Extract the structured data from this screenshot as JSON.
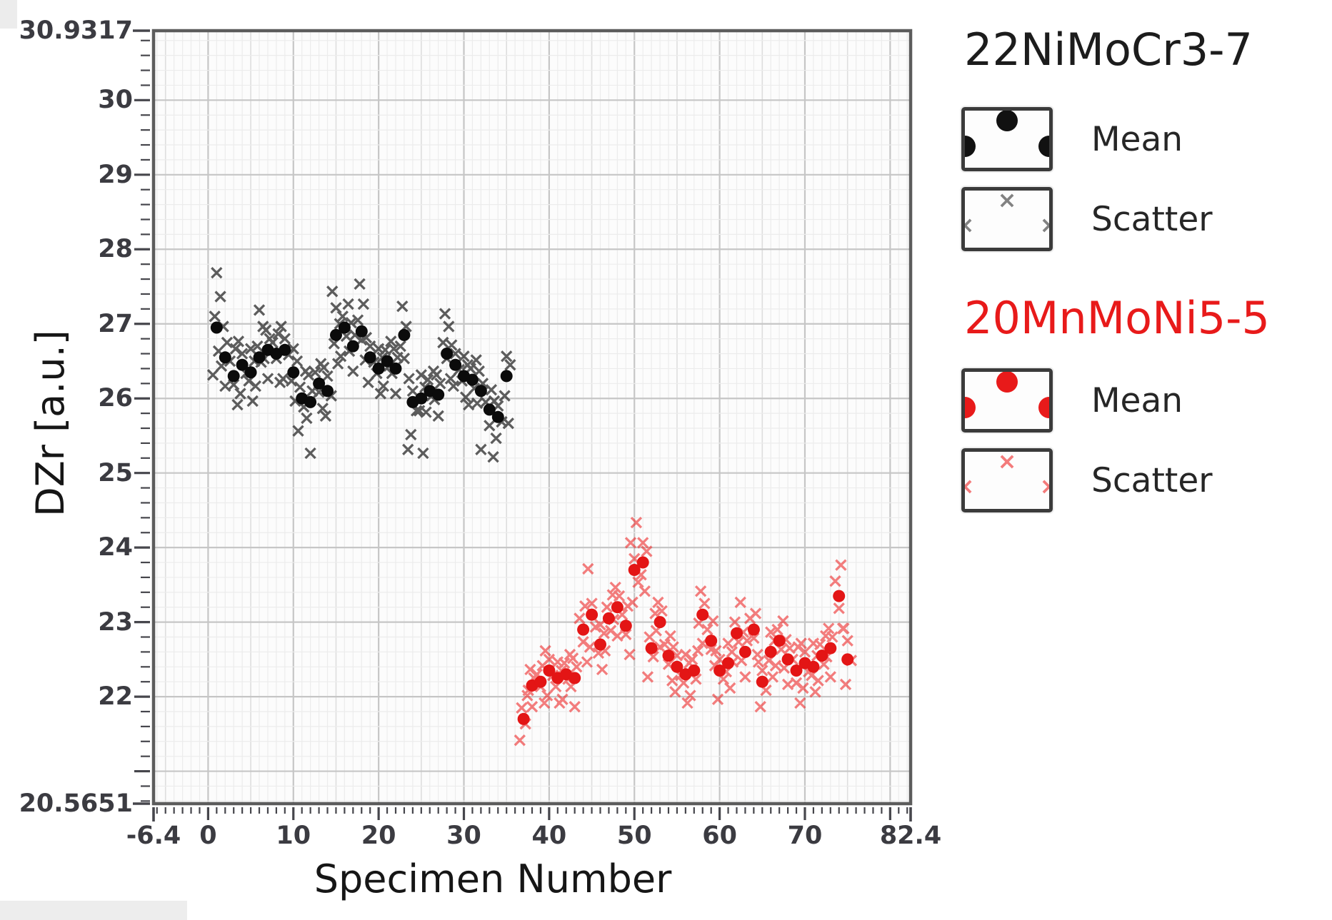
{
  "chart_data": {
    "type": "scatter",
    "title": "",
    "xlabel": "Specimen Number",
    "ylabel": "DZr [a.u.]",
    "xlim": [
      -6.4,
      82.4
    ],
    "ylim": [
      20.5651,
      30.9317
    ],
    "grid": true,
    "x_minor_step": 1,
    "y_minor_step": 0.2,
    "x_ticks": [
      {
        "v": -6.4,
        "label": "-6.4"
      },
      {
        "v": 0,
        "label": "0"
      },
      {
        "v": 10,
        "label": "10"
      },
      {
        "v": 20,
        "label": "20"
      },
      {
        "v": 30,
        "label": "30"
      },
      {
        "v": 40,
        "label": "40"
      },
      {
        "v": 50,
        "label": "50"
      },
      {
        "v": 60,
        "label": "60"
      },
      {
        "v": 70,
        "label": "70"
      },
      {
        "v": 82.4,
        "label": "82.4"
      }
    ],
    "y_ticks": [
      {
        "v": 30.9317,
        "label": "30.9317"
      },
      {
        "v": 30,
        "label": "30"
      },
      {
        "v": 29,
        "label": "29"
      },
      {
        "v": 28,
        "label": "28"
      },
      {
        "v": 27,
        "label": "27"
      },
      {
        "v": 26,
        "label": "26"
      },
      {
        "v": 25,
        "label": "25"
      },
      {
        "v": 24,
        "label": "24"
      },
      {
        "v": 23,
        "label": "23"
      },
      {
        "v": 22,
        "label": "22"
      },
      {
        "v": 20.5651,
        "label": "20.5651"
      }
    ],
    "series": [
      {
        "name": "22NiMoCr3-7",
        "mean_color": "#0b0b0b",
        "scatter_color": "#343434",
        "points": [
          [
            1,
            26.95,
            [
              26.35,
              26.6,
              27.1,
              27.4,
              27.65
            ]
          ],
          [
            2,
            26.55,
            [
              26.2,
              26.4,
              26.75,
              27.0
            ]
          ],
          [
            3,
            26.3,
            [
              25.95,
              26.15,
              26.5,
              26.7
            ]
          ],
          [
            4,
            26.45,
            [
              26.1,
              26.3,
              26.6,
              26.8
            ]
          ],
          [
            5,
            26.35,
            [
              26.0,
              26.2,
              26.5,
              26.7
            ]
          ],
          [
            6,
            26.55,
            [
              26.2,
              26.45,
              26.7,
              27.0,
              27.15
            ]
          ],
          [
            7,
            26.65,
            [
              26.3,
              26.5,
              26.8,
              26.95
            ]
          ],
          [
            8,
            26.6,
            [
              26.25,
              26.5,
              26.75,
              26.9
            ]
          ],
          [
            9,
            26.65,
            [
              26.3,
              26.55,
              26.8,
              27.0
            ]
          ],
          [
            10,
            26.35,
            [
              26.0,
              26.2,
              26.5,
              26.7
            ]
          ],
          [
            11,
            26.0,
            [
              25.6,
              25.85,
              26.15,
              26.4
            ]
          ],
          [
            12,
            25.95,
            [
              25.3,
              25.7,
              26.1,
              26.35
            ]
          ],
          [
            13,
            26.2,
            [
              25.9,
              26.05,
              26.35,
              26.5
            ]
          ],
          [
            14,
            26.1,
            [
              25.8,
              26.0,
              26.3,
              26.45
            ]
          ],
          [
            15,
            26.85,
            [
              26.5,
              26.7,
              27.0,
              27.25,
              27.4
            ]
          ],
          [
            16,
            26.95,
            [
              26.6,
              26.8,
              27.1,
              27.3
            ]
          ],
          [
            17,
            26.7,
            [
              26.4,
              26.6,
              26.85,
              27.05
            ]
          ],
          [
            18,
            26.9,
            [
              26.55,
              26.75,
              27.05,
              27.3,
              27.5
            ]
          ],
          [
            19,
            26.55,
            [
              26.25,
              26.45,
              26.7,
              26.85
            ]
          ],
          [
            20,
            26.4,
            [
              26.1,
              26.3,
              26.55,
              26.7
            ]
          ],
          [
            21,
            26.5,
            [
              26.2,
              26.4,
              26.65,
              26.8
            ]
          ],
          [
            22,
            26.4,
            [
              26.1,
              26.3,
              26.55,
              26.7
            ]
          ],
          [
            23,
            26.85,
            [
              25.35,
              26.5,
              26.7,
              27.0,
              27.2
            ]
          ],
          [
            24,
            25.95,
            [
              25.55,
              25.8,
              26.1,
              26.3
            ]
          ],
          [
            25,
            26.0,
            [
              25.3,
              25.8,
              26.15,
              26.35
            ]
          ],
          [
            26,
            26.1,
            [
              25.85,
              26.0,
              26.25,
              26.4
            ]
          ],
          [
            27,
            26.05,
            [
              25.8,
              25.95,
              26.2,
              26.35
            ]
          ],
          [
            28,
            26.6,
            [
              26.3,
              26.5,
              26.75,
              27.0,
              27.1
            ]
          ],
          [
            29,
            26.45,
            [
              26.2,
              26.35,
              26.6,
              26.75
            ]
          ],
          [
            30,
            26.3,
            [
              26.05,
              26.2,
              26.45,
              26.6
            ]
          ],
          [
            31,
            26.25,
            [
              25.95,
              26.1,
              26.4,
              26.55
            ]
          ],
          [
            32,
            26.1,
            [
              25.35,
              25.9,
              26.2,
              26.4
            ]
          ],
          [
            33,
            25.85,
            [
              25.25,
              25.6,
              25.95,
              26.15
            ]
          ],
          [
            34,
            25.75,
            [
              25.5,
              25.65,
              25.9,
              26.0
            ]
          ],
          [
            35,
            26.3,
            [
              25.7,
              26.0,
              26.45,
              26.6
            ]
          ]
        ]
      },
      {
        "name": "20MnMoNi5-5",
        "mean_color": "#e31515",
        "scatter_color": "#ee2e2e",
        "points": [
          [
            37,
            21.7,
            [
              21.45,
              21.6,
              21.85,
              22.05
            ]
          ],
          [
            38,
            22.15,
            [
              21.9,
              22.05,
              22.25,
              22.4
            ]
          ],
          [
            39,
            22.2,
            [
              21.95,
              22.1,
              22.3,
              22.45
            ]
          ],
          [
            40,
            22.35,
            [
              22.05,
              22.25,
              22.5,
              22.65
            ]
          ],
          [
            41,
            22.25,
            [
              21.95,
              22.1,
              22.35,
              22.5
            ]
          ],
          [
            42,
            22.3,
            [
              22.0,
              22.2,
              22.45,
              22.6
            ]
          ],
          [
            43,
            22.25,
            [
              21.9,
              22.1,
              22.4,
              22.55
            ]
          ],
          [
            44,
            22.9,
            [
              22.5,
              22.7,
              23.05,
              23.25
            ]
          ],
          [
            45,
            23.1,
            [
              22.7,
              22.9,
              23.25,
              23.75
            ]
          ],
          [
            46,
            22.7,
            [
              22.4,
              22.55,
              22.85,
              23.0
            ]
          ],
          [
            47,
            23.05,
            [
              22.65,
              22.85,
              23.2,
              23.4
            ]
          ],
          [
            48,
            23.2,
            [
              22.85,
              23.0,
              23.35,
              23.5
            ]
          ],
          [
            49,
            22.95,
            [
              22.6,
              22.8,
              23.1,
              23.25
            ]
          ],
          [
            50,
            23.7,
            [
              23.3,
              23.5,
              23.85,
              24.1,
              24.3
            ]
          ],
          [
            51,
            23.8,
            [
              23.45,
              23.6,
              23.95,
              24.1
            ]
          ],
          [
            52,
            22.65,
            [
              22.3,
              22.5,
              22.8,
              23.15
            ]
          ],
          [
            53,
            23.0,
            [
              22.7,
              22.85,
              23.15,
              23.3
            ]
          ],
          [
            54,
            22.55,
            [
              22.25,
              22.4,
              22.7,
              22.85
            ]
          ],
          [
            55,
            22.4,
            [
              22.1,
              22.25,
              22.55,
              22.7
            ]
          ],
          [
            56,
            22.3,
            [
              21.95,
              22.15,
              22.45,
              22.6
            ]
          ],
          [
            57,
            22.35,
            [
              22.05,
              22.2,
              22.5,
              22.65
            ]
          ],
          [
            58,
            23.1,
            [
              22.75,
              22.95,
              23.25,
              23.45
            ]
          ],
          [
            59,
            22.75,
            [
              22.45,
              22.6,
              22.9,
              23.05
            ]
          ],
          [
            60,
            22.35,
            [
              22.0,
              22.2,
              22.5,
              22.65
            ]
          ],
          [
            61,
            22.45,
            [
              22.15,
              22.3,
              22.6,
              22.75
            ]
          ],
          [
            62,
            22.85,
            [
              22.5,
              22.7,
              23.0,
              23.3
            ]
          ],
          [
            63,
            22.6,
            [
              22.3,
              22.45,
              22.75,
              22.9
            ]
          ],
          [
            64,
            22.9,
            [
              22.6,
              22.75,
              23.05,
              23.15
            ]
          ],
          [
            65,
            22.2,
            [
              21.9,
              22.05,
              22.35,
              22.5
            ]
          ],
          [
            66,
            22.6,
            [
              22.3,
              22.45,
              22.75,
              22.9
            ]
          ],
          [
            67,
            22.75,
            [
              22.45,
              22.6,
              22.9,
              23.05
            ]
          ],
          [
            68,
            22.5,
            [
              22.2,
              22.35,
              22.65,
              22.8
            ]
          ],
          [
            69,
            22.35,
            [
              21.95,
              22.15,
              22.5,
              22.7
            ]
          ],
          [
            70,
            22.45,
            [
              22.15,
              22.3,
              22.6,
              22.75
            ]
          ],
          [
            71,
            22.4,
            [
              22.1,
              22.25,
              22.55,
              22.75
            ]
          ],
          [
            72,
            22.55,
            [
              22.25,
              22.4,
              22.7,
              22.85
            ]
          ],
          [
            73,
            22.65,
            [
              22.3,
              22.5,
              22.8,
              22.95
            ]
          ],
          [
            74,
            23.35,
            [
              22.95,
              23.15,
              23.55,
              23.8
            ]
          ],
          [
            75,
            22.5,
            [
              22.2,
              22.45,
              22.75,
              22.95
            ]
          ]
        ]
      }
    ]
  },
  "legend": {
    "groups": [
      {
        "title": "22NiMoCr3-7",
        "title_color": "#1c1c1c",
        "mean_color": "#111111",
        "scatter_color": "#5a5a5a",
        "entries": [
          {
            "label": "Mean",
            "marker": "dot"
          },
          {
            "label": "Scatter",
            "marker": "x"
          }
        ]
      },
      {
        "title": "20MnMoNi5-5",
        "title_color": "#e81a1a",
        "mean_color": "#e81a1a",
        "scatter_color": "#f05050",
        "entries": [
          {
            "label": "Mean",
            "marker": "dot"
          },
          {
            "label": "Scatter",
            "marker": "x"
          }
        ]
      }
    ]
  }
}
